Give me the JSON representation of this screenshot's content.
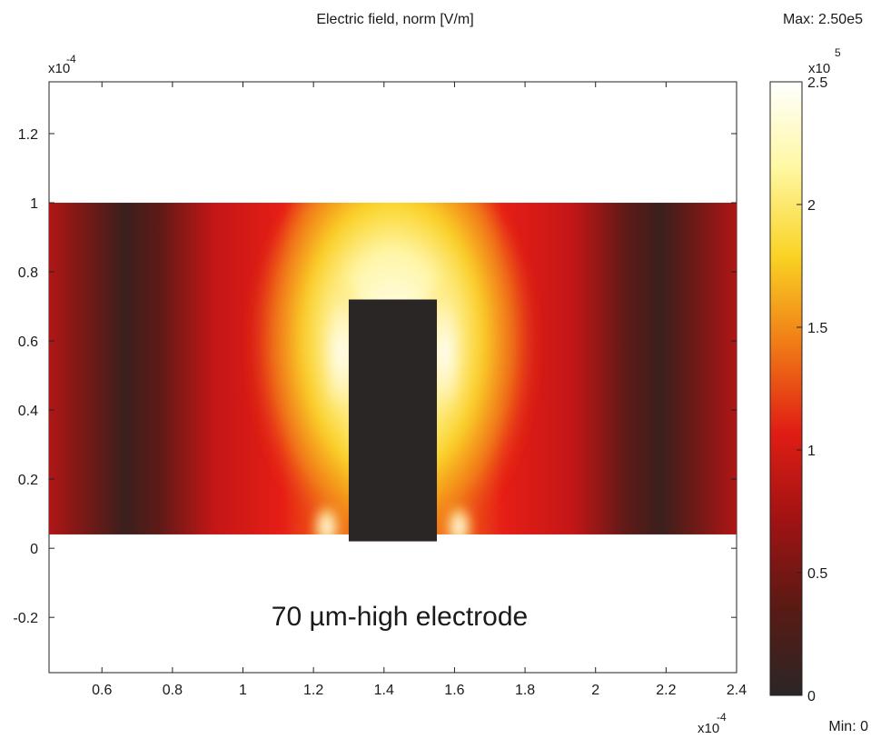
{
  "chart_data": {
    "type": "heatmap",
    "title": "Electric field, norm [V/m]",
    "max_label": "Max: 2.50e5",
    "min_label": "Min: 0",
    "annotation": "70 µm-high electrode",
    "x_axis": {
      "exponent_base": "x10",
      "exponent_power": "-4",
      "range": [
        0.45,
        2.4
      ],
      "ticks": [
        0.6,
        0.8,
        1.0,
        1.2,
        1.4,
        1.6,
        1.8,
        2.0,
        2.2,
        2.4
      ],
      "tick_labels": [
        "0.6",
        "0.8",
        "1",
        "1.2",
        "1.4",
        "1.6",
        "1.8",
        "2",
        "2.2",
        "2.4"
      ]
    },
    "y_axis": {
      "exponent_base": "x10",
      "exponent_power": "-4",
      "range": [
        -0.36,
        1.35
      ],
      "ticks": [
        -0.2,
        0.0,
        0.2,
        0.4,
        0.6,
        0.8,
        1.0,
        1.2
      ],
      "tick_labels": [
        "-0.2",
        "0",
        "0.2",
        "0.4",
        "0.6",
        "0.8",
        "1",
        "1.2"
      ]
    },
    "colorbar": {
      "exponent_base": "x10",
      "exponent_power": "5",
      "range": [
        0,
        2.5
      ],
      "ticks": [
        0,
        0.5,
        1.0,
        1.5,
        2.0,
        2.5
      ],
      "tick_labels": [
        "0",
        "0.5",
        "1",
        "1.5",
        "2",
        "2.5"
      ],
      "colormap": [
        "#2a2626",
        "#5a1a14",
        "#a01313",
        "#e01d14",
        "#f07a16",
        "#f9d223",
        "#fff7a0",
        "#ffffff"
      ]
    },
    "domain": {
      "x_range": [
        0.45,
        2.4
      ],
      "y_range": [
        0.04,
        1.0
      ]
    },
    "electrode": {
      "x_range": [
        1.3,
        1.55
      ],
      "y_range": [
        0.02,
        0.72
      ],
      "color": "#2a2626"
    }
  }
}
